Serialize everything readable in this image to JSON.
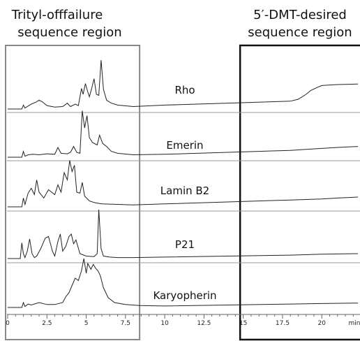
{
  "chart_data": {
    "type": "line",
    "title": "",
    "xlabel": "",
    "ylabel": "",
    "xlim": [
      0,
      22.3
    ],
    "xaxis_unit": "min",
    "x_ticks": [
      "0",
      "2.5",
      "5",
      "7.5",
      "10",
      "12.5",
      "15",
      "17.5",
      "20",
      "min"
    ],
    "regions": [
      {
        "label_line1": "Trityl-offfailure",
        "label_line2": "sequence region",
        "x_start": 0,
        "x_end": 8.4,
        "color": "#888888"
      },
      {
        "label_line1": "5′-DMT-desired",
        "label_line2": "sequence region",
        "x_start": 14.8,
        "x_end": 22.3,
        "color": "#111111"
      }
    ],
    "series": [
      {
        "name": "Rho",
        "x": [
          0,
          0.9,
          1.0,
          1.1,
          1.3,
          1.5,
          1.8,
          2.0,
          2.2,
          2.5,
          3.0,
          3.5,
          3.8,
          4.0,
          4.3,
          4.5,
          4.7,
          4.8,
          4.95,
          5.1,
          5.2,
          5.35,
          5.5,
          5.65,
          5.8,
          5.95,
          6.1,
          6.3,
          6.6,
          7.0,
          8.0,
          10,
          14,
          18,
          18.5,
          19,
          19.3,
          19.7,
          20,
          21,
          22.3
        ],
        "y": [
          0,
          0,
          0.08,
          0.02,
          0.06,
          0.1,
          0.14,
          0.18,
          0.15,
          0.07,
          0.04,
          0.05,
          0.12,
          0.05,
          0.1,
          0.07,
          0.42,
          0.3,
          0.52,
          0.35,
          0.25,
          0.42,
          0.62,
          0.3,
          0.28,
          1.0,
          0.4,
          0.18,
          0.12,
          0.08,
          0.05,
          0.08,
          0.12,
          0.16,
          0.2,
          0.3,
          0.38,
          0.44,
          0.48,
          0.5,
          0.51
        ]
      },
      {
        "name": "Emerin",
        "x": [
          0,
          0.9,
          1.0,
          1.1,
          1.3,
          1.6,
          2.0,
          2.5,
          3.0,
          3.2,
          3.4,
          3.8,
          4.0,
          4.2,
          4.4,
          4.6,
          4.75,
          4.9,
          5.05,
          5.2,
          5.4,
          5.7,
          5.85,
          6.05,
          6.3,
          6.6,
          7.0,
          8.0,
          10,
          14,
          18,
          19,
          20,
          21,
          22.3
        ],
        "y": [
          0,
          0,
          0.12,
          0.02,
          0.05,
          0.06,
          0.05,
          0.07,
          0.06,
          0.2,
          0.08,
          0.07,
          0.1,
          0.22,
          0.1,
          0.08,
          0.95,
          0.6,
          0.85,
          0.4,
          0.3,
          0.25,
          0.45,
          0.28,
          0.22,
          0.12,
          0.08,
          0.05,
          0.06,
          0.1,
          0.14,
          0.16,
          0.18,
          0.2,
          0.22
        ]
      },
      {
        "name": "Lamin B2",
        "x": [
          0,
          0.9,
          1.0,
          1.1,
          1.3,
          1.5,
          1.7,
          1.85,
          2.0,
          2.3,
          2.6,
          3.0,
          3.2,
          3.4,
          3.6,
          3.8,
          3.95,
          4.1,
          4.25,
          4.4,
          4.6,
          4.75,
          4.9,
          5.2,
          5.6,
          6.0,
          7.0,
          8.0,
          10,
          14,
          18,
          20,
          21,
          22.3
        ],
        "y": [
          0,
          0,
          0.18,
          0.05,
          0.28,
          0.38,
          0.25,
          0.55,
          0.3,
          0.18,
          0.35,
          0.25,
          0.45,
          0.3,
          0.7,
          0.55,
          0.95,
          0.72,
          0.85,
          0.3,
          0.28,
          0.5,
          0.22,
          0.12,
          0.08,
          0.06,
          0.05,
          0.04,
          0.06,
          0.1,
          0.14,
          0.16,
          0.18,
          0.2
        ]
      },
      {
        "name": "P21",
        "x": [
          0,
          0.8,
          0.9,
          1.0,
          1.1,
          1.25,
          1.4,
          1.55,
          1.7,
          1.85,
          2.1,
          2.4,
          2.6,
          2.85,
          3.0,
          3.2,
          3.35,
          3.5,
          3.7,
          3.9,
          4.05,
          4.2,
          4.35,
          4.6,
          5.0,
          5.5,
          5.7,
          5.8,
          5.95,
          6.1,
          6.5,
          7.0,
          8.0,
          10,
          14,
          18,
          20,
          22.3
        ],
        "y": [
          0,
          0,
          0.32,
          0.1,
          0.02,
          0.15,
          0.4,
          0.1,
          0.02,
          0.05,
          0.2,
          0.42,
          0.45,
          0.15,
          0.05,
          0.35,
          0.5,
          0.15,
          0.25,
          0.45,
          0.5,
          0.3,
          0.38,
          0.1,
          0.05,
          0.04,
          0.1,
          1.0,
          0.2,
          0.05,
          0.03,
          0.02,
          0.02,
          0.03,
          0.05,
          0.07,
          0.09,
          0.1
        ]
      },
      {
        "name": "Karyopherin",
        "x": [
          0,
          0.9,
          1.0,
          1.1,
          1.3,
          1.5,
          2.0,
          2.5,
          3.0,
          3.5,
          3.7,
          3.9,
          4.1,
          4.3,
          4.5,
          4.7,
          4.85,
          5.0,
          5.1,
          5.3,
          5.45,
          5.6,
          5.75,
          5.9,
          6.1,
          6.4,
          6.8,
          7.5,
          8.4,
          10,
          14,
          18,
          20,
          22.3
        ],
        "y": [
          0,
          0,
          0.1,
          0.02,
          0.07,
          0.05,
          0.1,
          0.06,
          0.06,
          0.1,
          0.22,
          0.3,
          0.45,
          0.6,
          0.55,
          0.75,
          1.0,
          0.7,
          0.9,
          0.78,
          0.88,
          0.8,
          0.75,
          0.65,
          0.4,
          0.2,
          0.1,
          0.06,
          0.04,
          0.03,
          0.05,
          0.07,
          0.08,
          0.09
        ]
      }
    ]
  }
}
